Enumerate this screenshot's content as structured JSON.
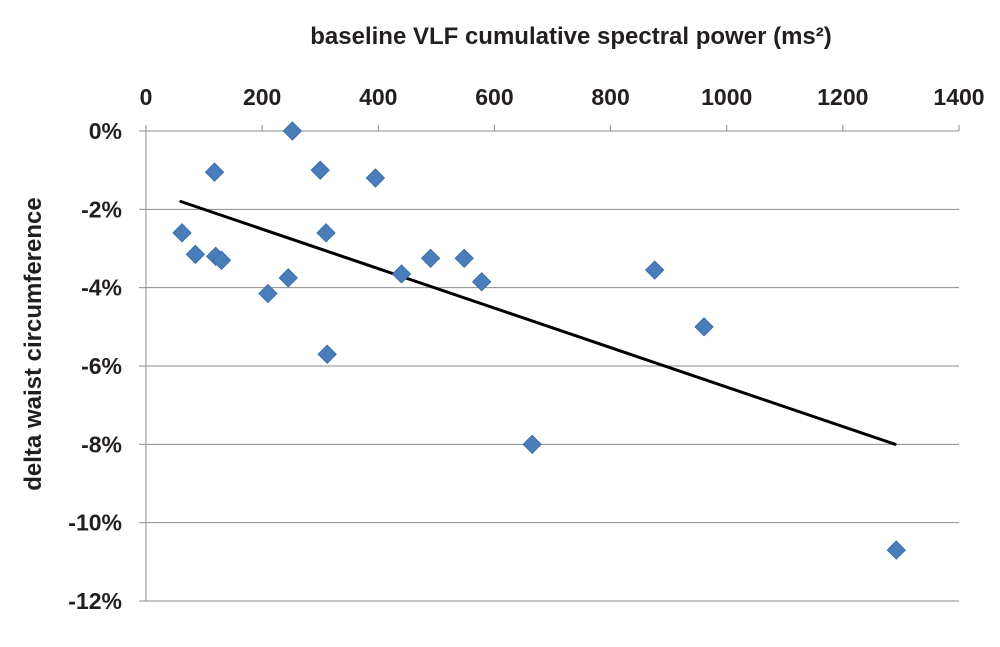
{
  "chart_data": {
    "type": "scatter",
    "title": "",
    "xlabel": "baseline VLF cumulative spectral power (ms²)",
    "ylabel": "delta waist circumference",
    "xlim": [
      0,
      1400
    ],
    "ylim": [
      -12,
      0
    ],
    "x_ticks": [
      "0",
      "200",
      "400",
      "600",
      "800",
      "1000",
      "1200",
      "1400"
    ],
    "y_ticks": [
      "0%",
      "-2%",
      "-4%",
      "-6%",
      "-8%",
      "-10%",
      "-12%"
    ],
    "x_axis_position": "top",
    "grid": "horizontal",
    "marker": "diamond",
    "colors": {
      "marker": "#4a7ebb",
      "trendline": "#000000",
      "grid": "#8c8c8c",
      "text": "#231f20"
    },
    "series": [
      {
        "points": [
          {
            "x": 62,
            "y": -2.6
          },
          {
            "x": 85,
            "y": -3.15
          },
          {
            "x": 118,
            "y": -1.05
          },
          {
            "x": 120,
            "y": -3.2
          },
          {
            "x": 130,
            "y": -3.3
          },
          {
            "x": 210,
            "y": -4.15
          },
          {
            "x": 245,
            "y": -3.75
          },
          {
            "x": 252,
            "y": 0.0
          },
          {
            "x": 300,
            "y": -1.0
          },
          {
            "x": 310,
            "y": -2.6
          },
          {
            "x": 312,
            "y": -5.7
          },
          {
            "x": 395,
            "y": -1.2
          },
          {
            "x": 440,
            "y": -3.65
          },
          {
            "x": 490,
            "y": -3.25
          },
          {
            "x": 548,
            "y": -3.25
          },
          {
            "x": 578,
            "y": -3.85
          },
          {
            "x": 665,
            "y": -8.0
          },
          {
            "x": 876,
            "y": -3.55
          },
          {
            "x": 961,
            "y": -5.0
          },
          {
            "x": 1292,
            "y": -10.7
          }
        ]
      }
    ],
    "trendline": {
      "type": "linear",
      "points": [
        {
          "x": 60,
          "y": -1.8
        },
        {
          "x": 1290,
          "y": -8.0
        }
      ]
    }
  }
}
